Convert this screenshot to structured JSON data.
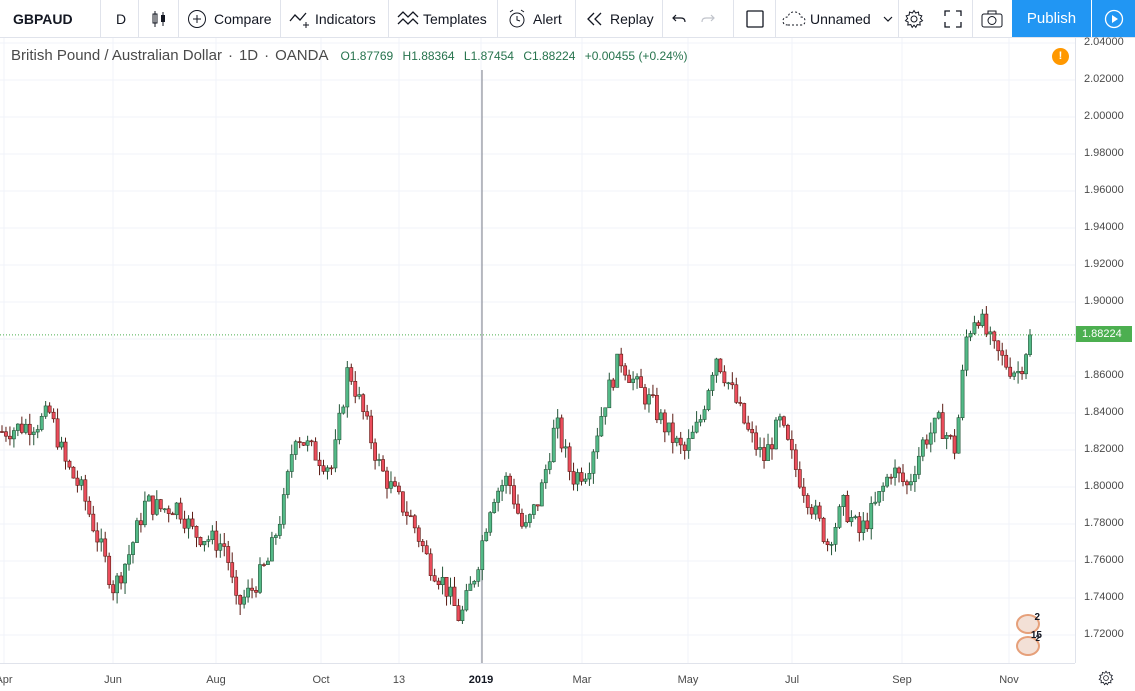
{
  "toolbar": {
    "symbol": "GBPAUD",
    "interval": "D",
    "compare": "Compare",
    "indicators": "Indicators",
    "templates": "Templates",
    "alert": "Alert",
    "replay": "Replay",
    "layout_name": "Unnamed",
    "publish": "Publish"
  },
  "legend": {
    "title": "British Pound / Australian Dollar",
    "interval": "1D",
    "exchange": "OANDA",
    "open": "O1.87769",
    "high": "H1.88364",
    "low": "L1.87454",
    "close": "C1.88224",
    "change": "+0.00455 (+0.24%)"
  },
  "alert_badge": "!",
  "price_tag": "1.88224",
  "events": {
    "a": "2",
    "b": "15",
    "b_sup": "2"
  },
  "colors": {
    "up": "#53b987",
    "down": "#eb4d5c",
    "up_border": "#225437",
    "down_border": "#5b1a13",
    "accent": "#2196f3",
    "price_line": "#4caf50"
  },
  "chart_data": {
    "type": "candlestick",
    "symbol": "GBPAUD",
    "ylim": [
      1.71,
      2.045
    ],
    "y_ticks": [
      "2.04000",
      "2.02000",
      "2.00000",
      "1.98000",
      "1.96000",
      "1.94000",
      "1.92000",
      "1.90000",
      "1.88000",
      "1.86000",
      "1.84000",
      "1.82000",
      "1.80000",
      "1.78000",
      "1.76000",
      "1.74000",
      "1.72000"
    ],
    "x_ticks": [
      "Apr",
      "Jun",
      "Aug",
      "Oct",
      "13",
      "2019",
      "Mar",
      "May",
      "Jul",
      "Sep",
      "Nov"
    ],
    "last_close": 1.88224,
    "grid": true,
    "close_path": [
      {
        "t": 0,
        "v": 1.83
      },
      {
        "t": 0.035,
        "v": 1.835
      },
      {
        "t": 0.045,
        "v": 1.84
      },
      {
        "t": 0.06,
        "v": 1.812
      },
      {
        "t": 0.075,
        "v": 1.798
      },
      {
        "t": 0.09,
        "v": 1.772
      },
      {
        "t": 0.105,
        "v": 1.745
      },
      {
        "t": 0.12,
        "v": 1.765
      },
      {
        "t": 0.135,
        "v": 1.792
      },
      {
        "t": 0.15,
        "v": 1.788
      },
      {
        "t": 0.165,
        "v": 1.79
      },
      {
        "t": 0.18,
        "v": 1.775
      },
      {
        "t": 0.195,
        "v": 1.772
      },
      {
        "t": 0.21,
        "v": 1.768
      },
      {
        "t": 0.22,
        "v": 1.735
      },
      {
        "t": 0.235,
        "v": 1.745
      },
      {
        "t": 0.25,
        "v": 1.76
      },
      {
        "t": 0.265,
        "v": 1.792
      },
      {
        "t": 0.275,
        "v": 1.83
      },
      {
        "t": 0.29,
        "v": 1.82
      },
      {
        "t": 0.31,
        "v": 1.81
      },
      {
        "t": 0.325,
        "v": 1.865
      },
      {
        "t": 0.34,
        "v": 1.838
      },
      {
        "t": 0.355,
        "v": 1.81
      },
      {
        "t": 0.37,
        "v": 1.795
      },
      {
        "t": 0.385,
        "v": 1.782
      },
      {
        "t": 0.4,
        "v": 1.76
      },
      {
        "t": 0.415,
        "v": 1.748
      },
      {
        "t": 0.43,
        "v": 1.728
      },
      {
        "t": 0.445,
        "v": 1.755
      },
      {
        "t": 0.46,
        "v": 1.795
      },
      {
        "t": 0.475,
        "v": 1.805
      },
      {
        "t": 0.49,
        "v": 1.775
      },
      {
        "t": 0.505,
        "v": 1.795
      },
      {
        "t": 0.52,
        "v": 1.835
      },
      {
        "t": 0.535,
        "v": 1.805
      },
      {
        "t": 0.55,
        "v": 1.81
      },
      {
        "t": 0.565,
        "v": 1.845
      },
      {
        "t": 0.58,
        "v": 1.87
      },
      {
        "t": 0.595,
        "v": 1.855
      },
      {
        "t": 0.61,
        "v": 1.845
      },
      {
        "t": 0.625,
        "v": 1.83
      },
      {
        "t": 0.64,
        "v": 1.818
      },
      {
        "t": 0.655,
        "v": 1.835
      },
      {
        "t": 0.67,
        "v": 1.872
      },
      {
        "t": 0.685,
        "v": 1.852
      },
      {
        "t": 0.7,
        "v": 1.83
      },
      {
        "t": 0.715,
        "v": 1.815
      },
      {
        "t": 0.73,
        "v": 1.835
      },
      {
        "t": 0.745,
        "v": 1.81
      },
      {
        "t": 0.76,
        "v": 1.79
      },
      {
        "t": 0.775,
        "v": 1.77
      },
      {
        "t": 0.79,
        "v": 1.79
      },
      {
        "t": 0.805,
        "v": 1.775
      },
      {
        "t": 0.82,
        "v": 1.79
      },
      {
        "t": 0.835,
        "v": 1.81
      },
      {
        "t": 0.85,
        "v": 1.8
      },
      {
        "t": 0.865,
        "v": 1.825
      },
      {
        "t": 0.88,
        "v": 1.835
      },
      {
        "t": 0.895,
        "v": 1.82
      },
      {
        "t": 0.905,
        "v": 1.88
      },
      {
        "t": 0.915,
        "v": 1.895
      },
      {
        "t": 0.93,
        "v": 1.875
      },
      {
        "t": 0.945,
        "v": 1.865
      },
      {
        "t": 0.955,
        "v": 1.862
      },
      {
        "t": 0.965,
        "v": 1.882
      }
    ]
  }
}
